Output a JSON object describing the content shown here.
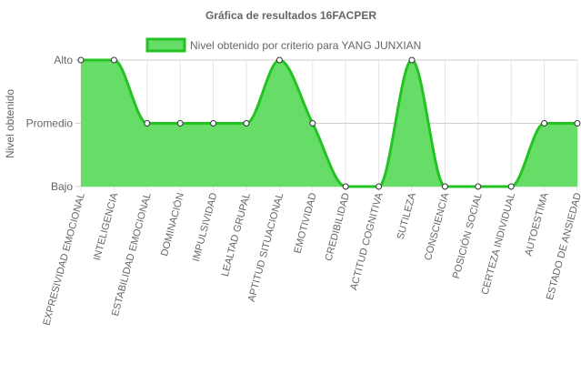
{
  "chart_data": {
    "type": "area",
    "title": "Gráfica de resultados 16FACPER",
    "ylabel": "Nivel obtenido",
    "xlabel": "",
    "y_levels": [
      "Bajo",
      "Promedio",
      "Alto"
    ],
    "ylim": [
      0,
      2
    ],
    "legend_position": "top",
    "grid": true,
    "categories": [
      "EXPRESIVIDAD EMOCIONAL",
      "INTELIGENCIA",
      "ESTABILIDAD EMOCIONAL",
      "DOMINACIÓN",
      "IMPULSIVIDAD",
      "LEALTAD GRUPAL",
      "APTITUD SITUACIONAL",
      "EMOTIVIDAD",
      "CREDIBILIDAD",
      "ACTITUD COGNITIVA",
      "SUTILEZA",
      "CONSCIENCIA",
      "POSICIÓN SOCIAL",
      "CERTEZA INDIVIDUAL",
      "AUTOESTIMA",
      "ESTADO DE ANSIEDAD"
    ],
    "series": [
      {
        "name": "Nivel obtenido por criterio para YANG JUNXIAN",
        "values": [
          2,
          2,
          1,
          1,
          1,
          1,
          2,
          1,
          0,
          0,
          2,
          0,
          0,
          0,
          1,
          1
        ],
        "fill_color": "#66dd66",
        "line_color": "#22c322"
      }
    ]
  }
}
